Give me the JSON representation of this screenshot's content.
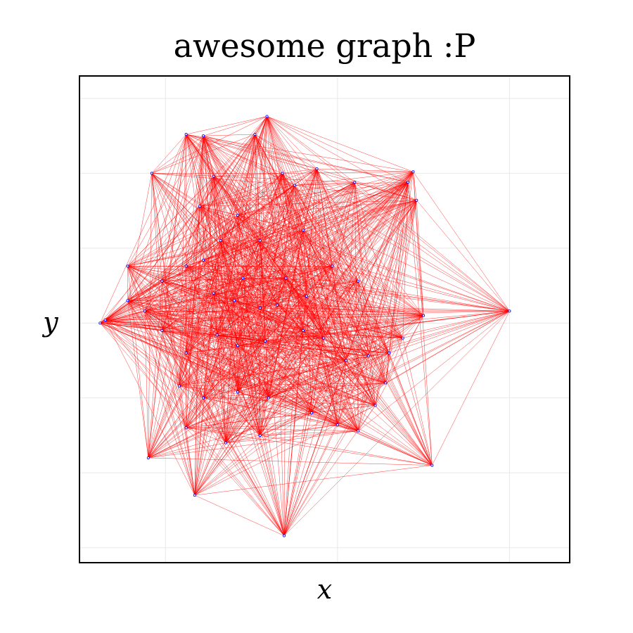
{
  "chart_data": {
    "type": "scatter",
    "title": "awesome graph :P",
    "xlabel": "x",
    "ylabel": "y",
    "xlim": [
      -1.0,
      1.85
    ],
    "ylim": [
      -1.6,
      1.65
    ],
    "grid": true,
    "edge_color": "#ff0000",
    "node_color": "#0000ff",
    "nodes": [
      {
        "x": -0.88,
        "y": 0.0
      },
      {
        "x": 1.5,
        "y": 0.08
      },
      {
        "x": 0.19,
        "y": -1.42
      },
      {
        "x": -0.33,
        "y": -1.15
      },
      {
        "x": -0.6,
        "y": -0.9
      },
      {
        "x": 1.05,
        "y": -0.95
      },
      {
        "x": 0.09,
        "y": 1.38
      },
      {
        "x": -0.38,
        "y": 1.26
      },
      {
        "x": -0.28,
        "y": 1.25
      },
      {
        "x": 0.02,
        "y": 1.26
      },
      {
        "x": -0.58,
        "y": 1.0
      },
      {
        "x": 0.94,
        "y": 1.01
      },
      {
        "x": 0.91,
        "y": 0.94
      },
      {
        "x": 0.96,
        "y": 0.82
      },
      {
        "x": 0.18,
        "y": 1.0
      },
      {
        "x": 0.38,
        "y": 1.03
      },
      {
        "x": 0.6,
        "y": 0.94
      },
      {
        "x": 0.25,
        "y": 0.92
      },
      {
        "x": -0.22,
        "y": 0.98
      },
      {
        "x": -0.85,
        "y": 0.02
      },
      {
        "x": -0.72,
        "y": 0.38
      },
      {
        "x": -0.72,
        "y": 0.15
      },
      {
        "x": -0.62,
        "y": 0.08
      },
      {
        "x": -0.52,
        "y": 0.28
      },
      {
        "x": -0.38,
        "y": 0.38
      },
      {
        "x": -0.28,
        "y": 0.42
      },
      {
        "x": -0.22,
        "y": 0.2
      },
      {
        "x": -0.1,
        "y": 0.15
      },
      {
        "x": 0.05,
        "y": 0.1
      },
      {
        "x": 0.15,
        "y": 0.12
      },
      {
        "x": 0.32,
        "y": 0.18
      },
      {
        "x": 0.47,
        "y": 0.38
      },
      {
        "x": 0.62,
        "y": 0.28
      },
      {
        "x": 1.0,
        "y": 0.05
      },
      {
        "x": 0.88,
        "y": -0.1
      },
      {
        "x": 0.8,
        "y": -0.2
      },
      {
        "x": 0.68,
        "y": -0.22
      },
      {
        "x": 0.55,
        "y": -0.25
      },
      {
        "x": 0.42,
        "y": -0.1
      },
      {
        "x": 0.3,
        "y": -0.05
      },
      {
        "x": -0.52,
        "y": -0.05
      },
      {
        "x": -0.38,
        "y": -0.2
      },
      {
        "x": -0.2,
        "y": -0.08
      },
      {
        "x": -0.08,
        "y": -0.15
      },
      {
        "x": 0.08,
        "y": -0.12
      },
      {
        "x": -0.42,
        "y": -0.42
      },
      {
        "x": -0.28,
        "y": -0.5
      },
      {
        "x": -0.08,
        "y": -0.46
      },
      {
        "x": 0.1,
        "y": -0.5
      },
      {
        "x": 0.35,
        "y": -0.6
      },
      {
        "x": 0.72,
        "y": -0.55
      },
      {
        "x": 0.78,
        "y": -0.4
      },
      {
        "x": -0.3,
        "y": 0.78
      },
      {
        "x": -0.08,
        "y": 0.72
      },
      {
        "x": 0.05,
        "y": 0.55
      },
      {
        "x": 0.3,
        "y": 0.62
      },
      {
        "x": -0.18,
        "y": 0.55
      },
      {
        "x": -0.15,
        "y": -0.8
      },
      {
        "x": -0.38,
        "y": -0.7
      },
      {
        "x": 0.05,
        "y": -0.75
      },
      {
        "x": 0.5,
        "y": -0.68
      },
      {
        "x": 0.62,
        "y": -0.72
      },
      {
        "x": 0.2,
        "y": 0.3
      },
      {
        "x": -0.05,
        "y": 0.3
      }
    ]
  }
}
